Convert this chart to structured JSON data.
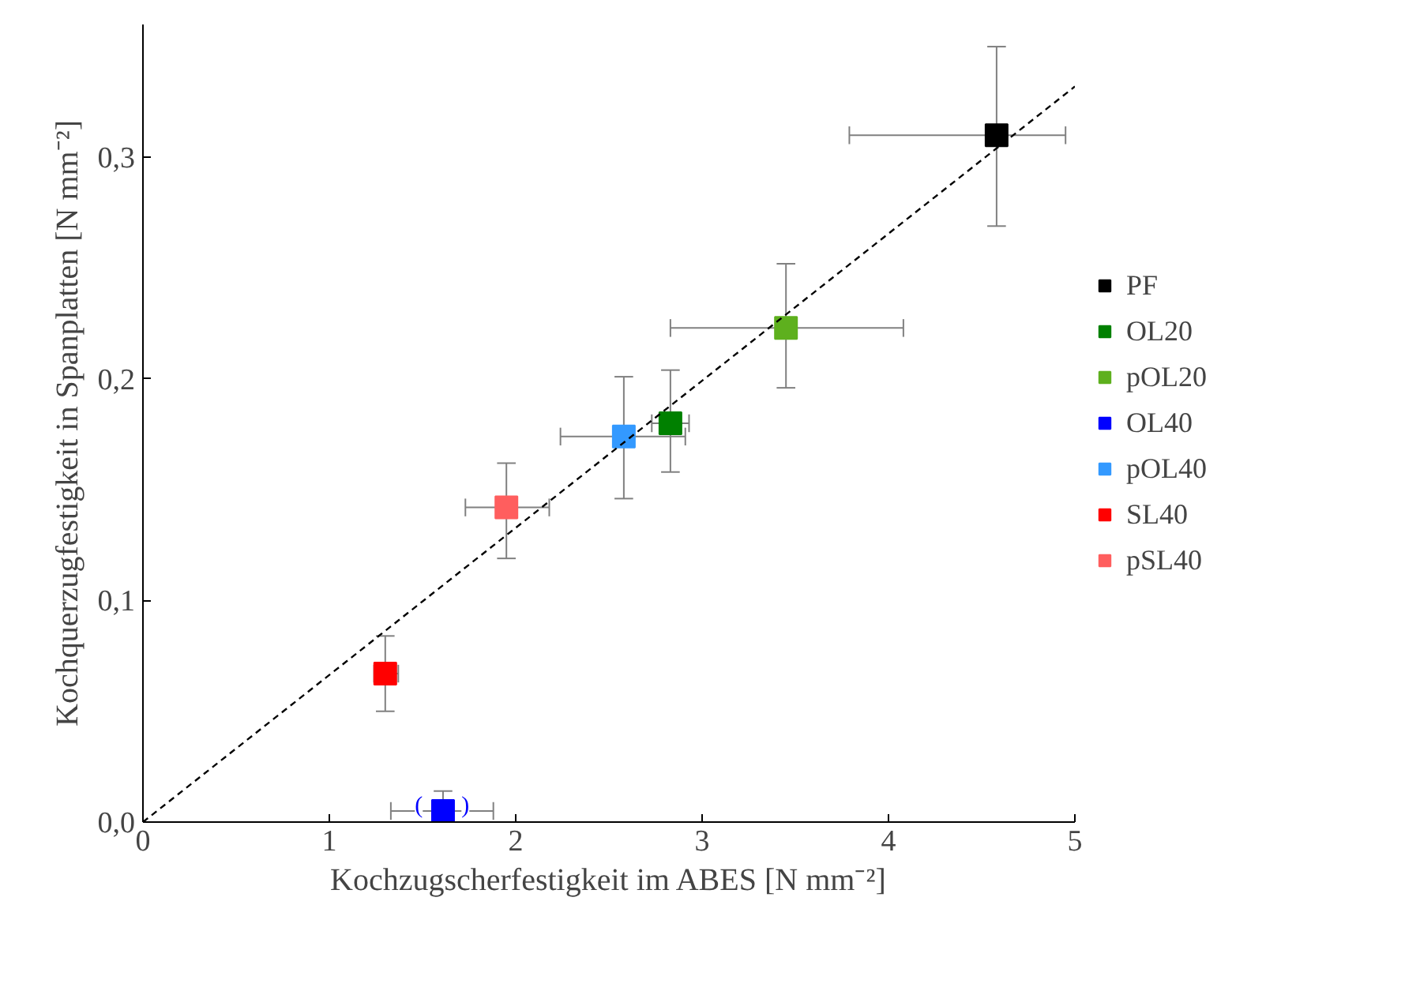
{
  "chart_data": {
    "type": "scatter",
    "xlabel": "Kochzugscherfestigkeit im ABES [N mm⁻²]",
    "ylabel": "Kochquerzugfestigkeit in Spanplatten [N mm⁻²]",
    "xlim": [
      0,
      5
    ],
    "ylim": [
      0,
      0.36
    ],
    "xticks": [
      0,
      1,
      2,
      3,
      4,
      5
    ],
    "yticks": [
      {
        "value": 0,
        "label": "0,0"
      },
      {
        "value": 0.1,
        "label": "0,1"
      },
      {
        "value": 0.2,
        "label": "0,2"
      },
      {
        "value": 0.3,
        "label": "0,3"
      }
    ],
    "grid": false,
    "legend": "right",
    "marker": "square",
    "series": [
      {
        "name": "PF",
        "color": "#000000",
        "x": [
          4.58
        ],
        "values": [
          0.31
        ],
        "errors": [
          [
            0.269,
            0.35
          ]
        ],
        "xerrors": [
          [
            3.79,
            4.95
          ]
        ]
      },
      {
        "name": "OL20",
        "color": "#008000",
        "x": [
          2.83
        ],
        "values": [
          0.18
        ],
        "errors": [
          [
            0.158,
            0.204
          ]
        ],
        "xerrors": [
          [
            2.73,
            2.93
          ]
        ]
      },
      {
        "name": "pOL20",
        "color": "#5eb01e",
        "x": [
          3.45
        ],
        "values": [
          0.223
        ],
        "errors": [
          [
            0.196,
            0.252
          ]
        ],
        "xerrors": [
          [
            2.83,
            4.08
          ]
        ]
      },
      {
        "name": "OL40",
        "color": "#0000ff",
        "x": [
          1.61
        ],
        "values": [
          0.005
        ],
        "errors": [
          [
            0.001,
            0.014
          ]
        ],
        "xerrors": [
          [
            1.33,
            1.88
          ]
        ]
      },
      {
        "name": "pOL40",
        "color": "#3399ff",
        "x": [
          2.58
        ],
        "values": [
          0.174
        ],
        "errors": [
          [
            0.146,
            0.201
          ]
        ],
        "xerrors": [
          [
            2.24,
            2.91
          ]
        ]
      },
      {
        "name": "SL40",
        "color": "#ff0000",
        "x": [
          1.3
        ],
        "values": [
          0.067
        ],
        "errors": [
          [
            0.05,
            0.084
          ]
        ],
        "xerrors": [
          [
            1.24,
            1.37
          ]
        ]
      },
      {
        "name": "pSL40",
        "color": "#ff5e5e",
        "x": [
          1.95
        ],
        "values": [
          0.142
        ],
        "errors": [
          [
            0.119,
            0.162
          ]
        ],
        "xerrors": [
          [
            1.73,
            2.18
          ]
        ]
      },
      {
        "type": "line",
        "color": "#000000",
        "line_style": "dashed",
        "marker": "none",
        "x": [
          0,
          5
        ],
        "values": [
          0,
          0.332
        ]
      }
    ],
    "annotations": [
      {
        "text": "(",
        "x": 1.48,
        "y": 0.005
      },
      {
        "text": ")",
        "x": 1.73,
        "y": 0.005
      }
    ]
  }
}
